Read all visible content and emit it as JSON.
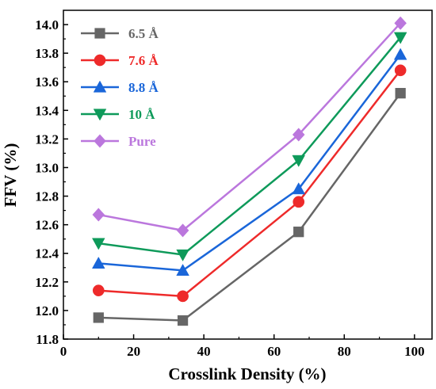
{
  "chart_data": {
    "type": "line",
    "title": "",
    "xlabel": "Crosslink Density (%)",
    "ylabel": "FFV (%)",
    "xlim": [
      0,
      105
    ],
    "ylim": [
      11.8,
      14.1
    ],
    "xticks": [
      0,
      20,
      40,
      60,
      80,
      100
    ],
    "yticks": [
      11.8,
      12.0,
      12.2,
      12.4,
      12.6,
      12.8,
      13.0,
      13.2,
      13.4,
      13.6,
      13.8,
      14.0
    ],
    "ytick_labels": [
      "11.8",
      "12.0",
      "12.2",
      "12.4",
      "12.6",
      "12.8",
      "13.0",
      "13.2",
      "13.4",
      "13.6",
      "13.8",
      "14.0"
    ],
    "grid": false,
    "legend_position": "top-left",
    "x": [
      10,
      34,
      67,
      96
    ],
    "series": [
      {
        "name": "6.5 Å",
        "color": "#666666",
        "marker": "square",
        "values": [
          11.95,
          11.93,
          12.55,
          13.52
        ]
      },
      {
        "name": "7.6 Å",
        "color": "#ee2a2a",
        "marker": "circle",
        "values": [
          12.14,
          12.1,
          12.76,
          13.68
        ]
      },
      {
        "name": "8.8 Å",
        "color": "#1a66d9",
        "marker": "triangle-up",
        "values": [
          12.33,
          12.28,
          12.85,
          13.79
        ]
      },
      {
        "name": "10 Å",
        "color": "#0e9a5a",
        "marker": "triangle-down",
        "values": [
          12.47,
          12.39,
          13.05,
          13.91
        ]
      },
      {
        "name": "Pure",
        "color": "#bb77dd",
        "marker": "diamond",
        "values": [
          12.67,
          12.56,
          13.23,
          14.01
        ]
      }
    ]
  }
}
